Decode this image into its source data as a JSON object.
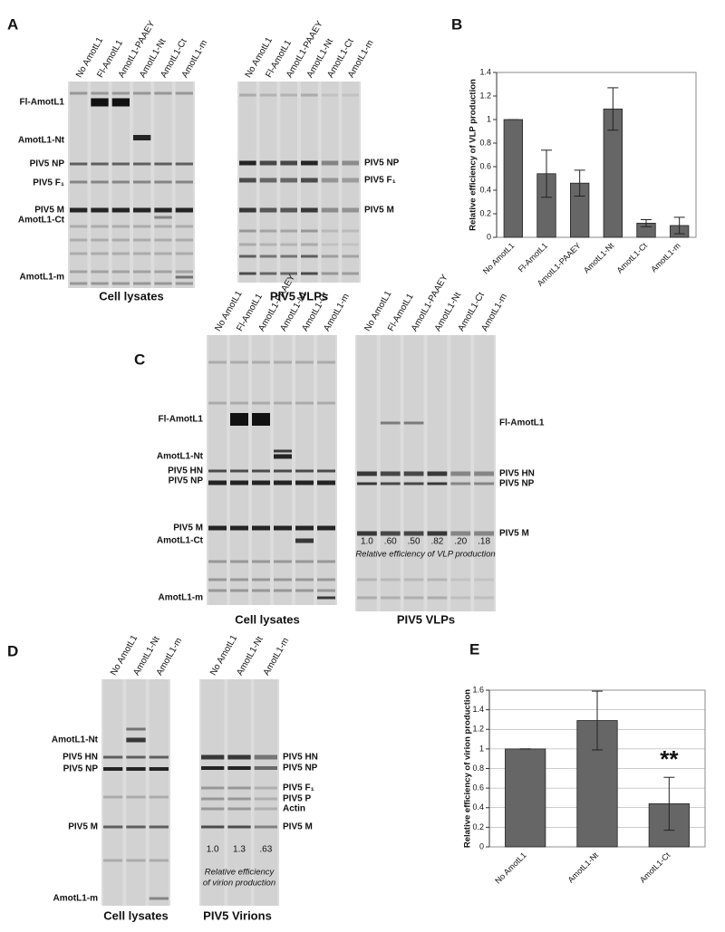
{
  "panel_labels": [
    "A",
    "B",
    "C",
    "D",
    "E"
  ],
  "gels": [
    {
      "lanes": [
        "No AmotL1",
        "Fl-AmotL1",
        "AmotL1-PAAEY",
        "AmotL1-Nt",
        "AmotL1-Ct",
        "AmotL1-m"
      ],
      "labels": [
        "Fl-AmotL1",
        "AmotL1-Nt",
        "PIV5 NP",
        "PIV5 F₁",
        "PIV5 M",
        "AmotL1-Ct",
        "AmotL1-m"
      ],
      "caption": "Cell lysates"
    },
    {
      "lanes": [
        "No AmotL1",
        "Fl-AmotL1",
        "AmotL1-PAAEY",
        "AmotL1-Nt",
        "AmotL1-Ct",
        "AmotL1-m"
      ],
      "labels": [
        "PIV5 NP",
        "PIV5 F₁",
        "PIV5 M"
      ],
      "caption": "PIV5 VLPs"
    },
    {
      "lanes": [
        "No AmotL1",
        "Fl-AmotL1",
        "AmotL1-PAAEY",
        "AmotL1-Nt",
        "AmotL1-Ct",
        "AmotL1-m"
      ],
      "labels": [
        "Fl-AmotL1",
        "AmotL1-Nt",
        "PIV5 HN",
        "PIV5 NP",
        "PIV5 M",
        "AmotL1-Ct",
        "AmotL1-m"
      ],
      "caption": "Cell lysates"
    },
    {
      "lanes": [
        "No AmotL1",
        "Fl-AmotL1",
        "AmotL1-PAAEY",
        "AmotL1-Nt",
        "AmotL1-Ct",
        "AmotL1-m"
      ],
      "labels": [
        "Fl-AmotL1",
        "PIV5 HN",
        "PIV5 NP",
        "PIV5 M"
      ],
      "lane_values": [
        "1.0",
        ".60",
        ".50",
        ".82",
        ".20",
        ".18"
      ],
      "note": [
        "Relative efficiency of VLP production"
      ],
      "caption": "PIV5 VLPs"
    },
    {
      "lanes": [
        "No AmotL1",
        "AmotL1-Nt",
        "AmotL1-m"
      ],
      "labels": [
        "AmotL1-Nt",
        "PIV5 HN",
        "PIV5 NP",
        "PIV5 M",
        "AmotL1-m"
      ],
      "caption": "Cell lysates"
    },
    {
      "lanes": [
        "No AmotL1",
        "AmotL1-Nt",
        "AmotL1-m"
      ],
      "labels": [
        "PIV5 HN",
        "PIV5 NP",
        "PIV5 F₁",
        "PIV5 P",
        "Actin",
        "PIV5 M"
      ],
      "lane_values": [
        "1.0",
        "1.3",
        ".63"
      ],
      "note": [
        "Relative efficiency",
        "of virion production"
      ],
      "caption": "PIV5 Virions"
    }
  ],
  "chart_data": [
    {
      "type": "bar",
      "y_label": "Relative efficiency of VLP production",
      "categories": [
        "No AmotL1",
        "Fl-AmotL1",
        "AmotL1-PAAEY",
        "AmotL1-Nt",
        "AmotL1-Ct",
        "AmotL1-m"
      ],
      "values": [
        1,
        0.54,
        0.46,
        1.09,
        0.12,
        0.1
      ],
      "errors": [
        0,
        0.2,
        0.11,
        0.18,
        0.03,
        0.07
      ],
      "color": "#666666",
      "ylim": [
        0,
        1.4
      ],
      "yticks": [
        0,
        0.2,
        0.4,
        0.6,
        0.8,
        1,
        1.2,
        1.4
      ],
      "grid": false
    },
    {
      "type": "bar",
      "y_label": "Relative efficiency of virion production",
      "categories": [
        "No AmotL1",
        "AmotL1-Nt",
        "AmotL1-Ct"
      ],
      "values": [
        1,
        1.29,
        0.44
      ],
      "errors": [
        0,
        0.3,
        0.27
      ],
      "annotations": [
        "**"
      ],
      "color": "#666666",
      "ylim": [
        0,
        1.6
      ],
      "yticks": [
        0,
        0.2,
        0.4,
        0.6,
        0.8,
        1,
        1.2,
        1.4,
        1.6
      ],
      "grid": true
    }
  ]
}
